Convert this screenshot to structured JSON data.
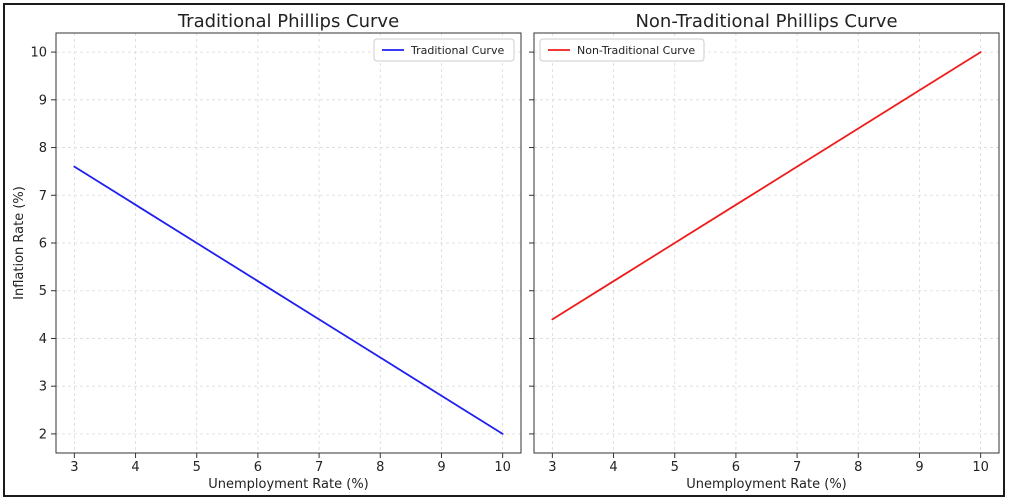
{
  "chart_data": [
    {
      "type": "line",
      "title": "Traditional Phillips Curve",
      "xlabel": "Unemployment Rate (%)",
      "ylabel": "Inflation Rate (%)",
      "xlim": [
        2.7,
        10.3
      ],
      "ylim": [
        1.6,
        10.4
      ],
      "xticks": [
        3,
        4,
        5,
        6,
        7,
        8,
        9,
        10
      ],
      "yticks": [
        2,
        3,
        4,
        5,
        6,
        7,
        8,
        9,
        10
      ],
      "xtick_labels": [
        "3",
        "4",
        "5",
        "6",
        "7",
        "8",
        "9",
        "10"
      ],
      "ytick_labels": [
        "2",
        "3",
        "4",
        "5",
        "6",
        "7",
        "8",
        "9",
        "10"
      ],
      "grid": true,
      "legend_position": "top-right",
      "series": [
        {
          "name": "Traditional Curve",
          "color": "#1f1ff0",
          "x": [
            3,
            4,
            5,
            6,
            7,
            8,
            9,
            10
          ],
          "y": [
            7.6,
            6.8,
            6.0,
            5.2,
            4.4,
            3.6,
            2.8,
            2.0
          ]
        }
      ]
    },
    {
      "type": "line",
      "title": "Non-Traditional Phillips Curve",
      "xlabel": "Unemployment Rate (%)",
      "ylabel": "",
      "xlim": [
        2.7,
        10.3
      ],
      "ylim": [
        1.6,
        10.4
      ],
      "xticks": [
        3,
        4,
        5,
        6,
        7,
        8,
        9,
        10
      ],
      "yticks": [
        2,
        3,
        4,
        5,
        6,
        7,
        8,
        9,
        10
      ],
      "xtick_labels": [
        "3",
        "4",
        "5",
        "6",
        "7",
        "8",
        "9",
        "10"
      ],
      "ytick_labels": [],
      "grid": true,
      "legend_position": "top-left",
      "series": [
        {
          "name": "Non-Traditional Curve",
          "color": "#ee1c1c",
          "x": [
            3,
            4,
            5,
            6,
            7,
            8,
            9,
            10
          ],
          "y": [
            4.4,
            5.2,
            6.0,
            6.8,
            7.6,
            8.4,
            9.2,
            10.0
          ]
        }
      ]
    }
  ]
}
